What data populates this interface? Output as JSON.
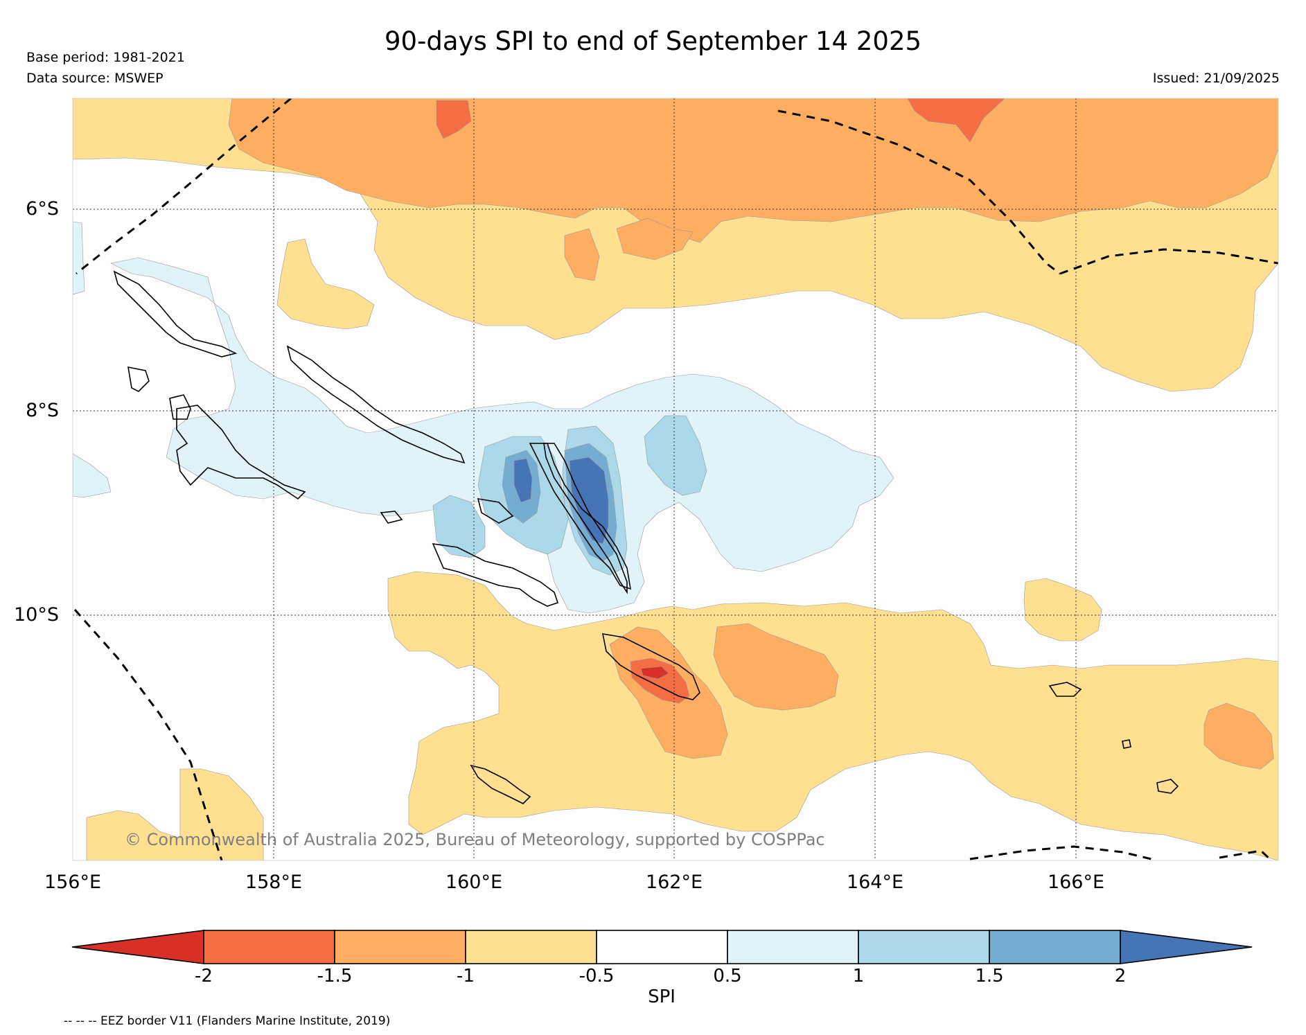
{
  "header": {
    "title": "90-days SPI to end of September 14 2025",
    "base_period": "Base period: 1981-2021",
    "data_source": "Data source: MSWEP",
    "issued": "Issued: 21/09/2025"
  },
  "map": {
    "lat_labels": [
      "6°S",
      "8°S",
      "10°S"
    ],
    "lon_labels": [
      "156°E",
      "158°E",
      "160°E",
      "162°E",
      "164°E",
      "166°E"
    ],
    "copyright": "© Commonwealth of Australia 2025, Bureau of Meteorology, supported by COSPPac"
  },
  "colorbar": {
    "label": "SPI",
    "ticks": [
      "-2",
      "-1.5",
      "-1",
      "-0.5",
      "0.5",
      "1",
      "1.5",
      "2"
    ],
    "colors": {
      "below_-2": "#d73027",
      "-2_-1.5": "#f46d43",
      "-1.5_-1": "#fdae61",
      "-1_-0.5": "#fee090",
      "-0.5_0.5": "#ffffff",
      "0.5_1": "#e0f3f8",
      "1_1.5": "#abd9e9",
      "1.5_2": "#74add1",
      "above_2": "#4575b4"
    }
  },
  "footer": {
    "eez_legend": "-- -- -- EEZ border V11 (Flanders Marine Institute, 2019)"
  }
}
